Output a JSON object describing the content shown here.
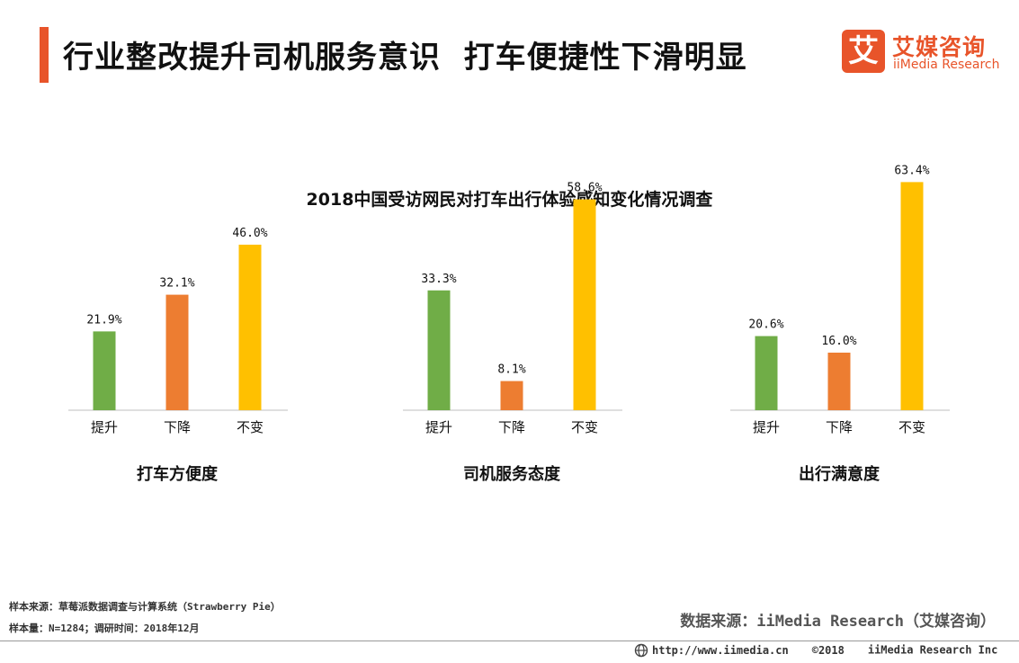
{
  "header": {
    "title": "行业整改提升司机服务意识  打车便捷性下滑明显",
    "logo_mark": "艾",
    "logo_cn": "艾媒咨询",
    "logo_en": "iiMedia Research"
  },
  "chart_data": {
    "type": "bar",
    "title": "2018中国受访网民对打车出行体验感知变化情况调查",
    "categories": [
      "提升",
      "下降",
      "不变"
    ],
    "colors": [
      "#70ad47",
      "#ed7d31",
      "#ffc000"
    ],
    "ylim": [
      0,
      70
    ],
    "panels": [
      {
        "name": "打车方便度",
        "values": [
          21.9,
          32.1,
          46.0
        ],
        "labels": [
          "21.9%",
          "32.1%",
          "46.0%"
        ]
      },
      {
        "name": "司机服务态度",
        "values": [
          33.3,
          8.1,
          58.6
        ],
        "labels": [
          "33.3%",
          "8.1%",
          "58.6%"
        ]
      },
      {
        "name": "出行满意度",
        "values": [
          20.6,
          16.0,
          63.4
        ],
        "labels": [
          "20.6%",
          "16.0%",
          "63.4%"
        ]
      }
    ]
  },
  "notes": {
    "sample_source": "样本来源：草莓派数据调查与计算系统（Strawberry Pie）",
    "sample_size": "样本量：N=1284；调研时间：2018年12月",
    "data_source": "数据来源：iiMedia Research（艾媒咨询）"
  },
  "footer": {
    "url": "http://www.iimedia.cn",
    "copyright": "©2018",
    "company": "iiMedia Research  Inc"
  }
}
